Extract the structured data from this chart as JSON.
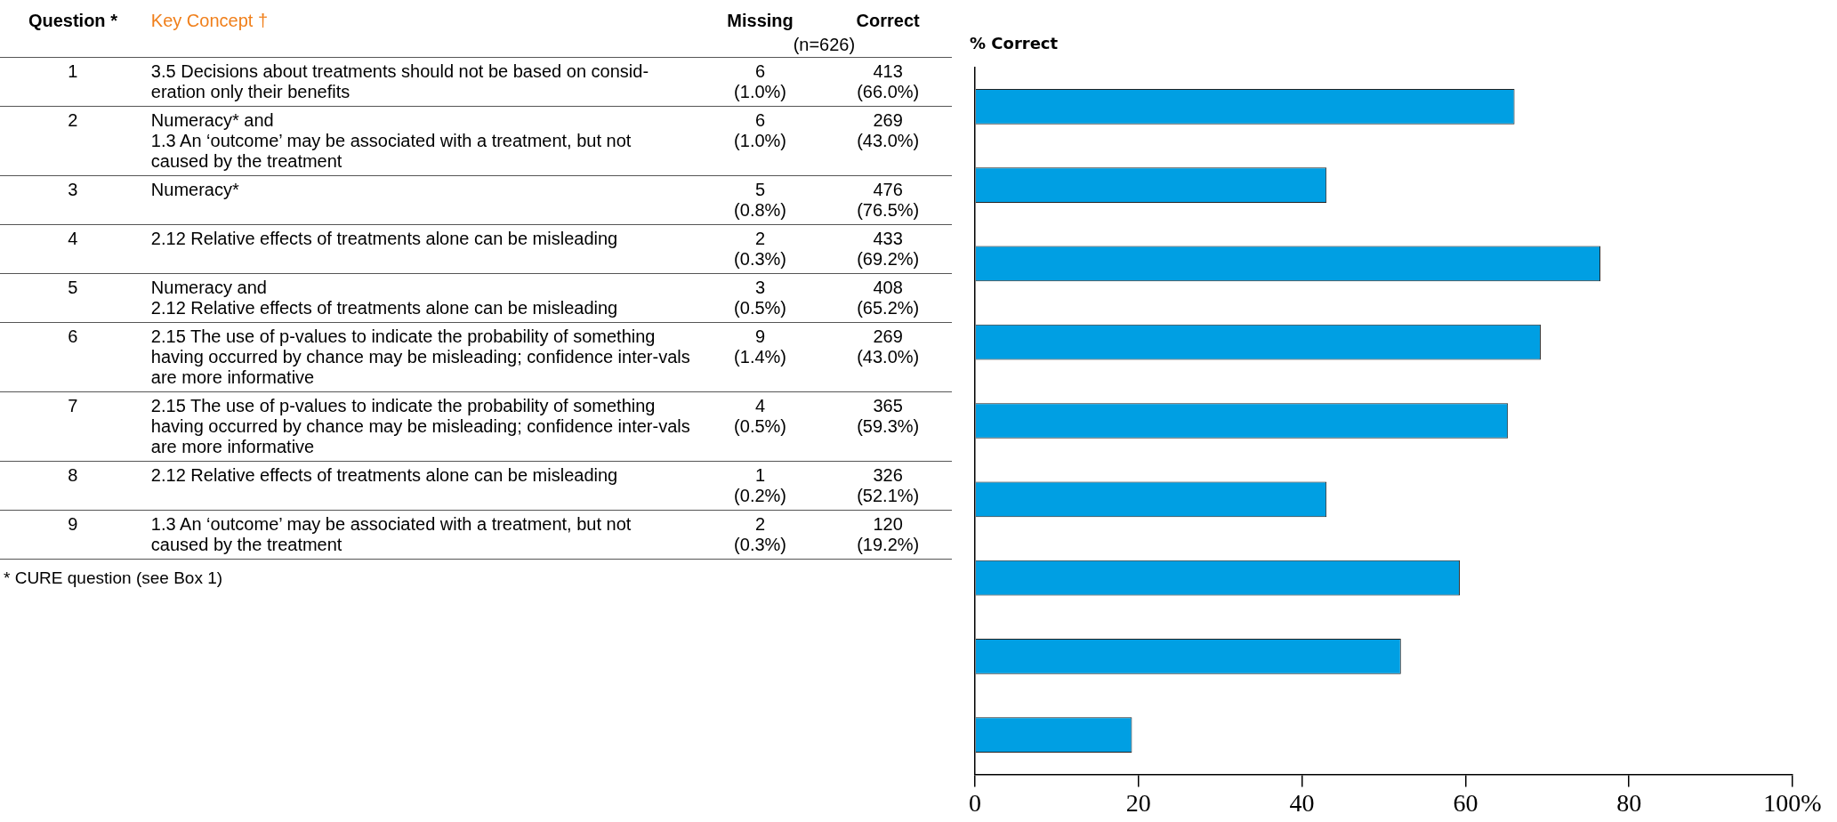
{
  "chart_data": [
    {
      "type": "other",
      "subtitle": "(n=626)",
      "annotations": [
        "Question *",
        "Key Concept †",
        "Missing",
        "Correct",
        "1",
        "3.5 Decisions about treatments should not be based on consid-eration only their benefits",
        "6\n(1.0%)",
        "413\n(66.0%)",
        "2",
        "Numeracy* and\n1.3 An ‘outcome’ may be associated with a treatment, but not caused by the treatment",
        "6\n(1.0%)",
        "269\n(43.0%)",
        "3",
        "Numeracy*",
        "5\n(0.8%)",
        "476\n(76.5%)",
        "4",
        "2.12 Relative effects of treatments alone can be misleading",
        "2\n(0.3%)",
        "433\n(69.2%)",
        "5",
        "Numeracy and\n2.12 Relative effects of treatments alone can be misleading",
        "3\n(0.5%)",
        "408\n(65.2%)",
        "6",
        "2.15 The use of p-values to indicate the probability of something having occurred by chance may be misleading; confidence inter-vals are more informative",
        "9\n(1.4%)",
        "269\n(43.0%)",
        "7",
        "2.15 The use of p-values to indicate the probability of something having occurred by chance may be misleading; confidence inter-vals are more informative",
        "4\n(0.5%)",
        "365\n(59.3%)",
        "8",
        "2.12 Relative effects of treatments alone can be misleading",
        "1\n(0.2%)",
        "326\n(52.1%)",
        "9",
        "1.3 An ‘outcome’ may be associated with a treatment, but not caused by the treatment",
        "2\n(0.3%)",
        "120\n(19.2%)",
        "* CURE question (see Box 1)"
      ]
    },
    {
      "type": "bar",
      "orientation": "horizontal",
      "title": "% Correct",
      "categories": [
        null,
        null,
        null,
        null,
        null,
        null,
        null,
        null,
        null
      ],
      "values": [
        66.0,
        43.0,
        76.5,
        69.2,
        65.2,
        43.0,
        59.3,
        52.1,
        19.2
      ],
      "color": "#009fe3",
      "xlim": [
        0,
        100
      ],
      "xticks": [
        0,
        20,
        40,
        60,
        80,
        {
          "value": 100,
          "label": "100%"
        }
      ],
      "grid": false,
      "legend": false
    }
  ]
}
